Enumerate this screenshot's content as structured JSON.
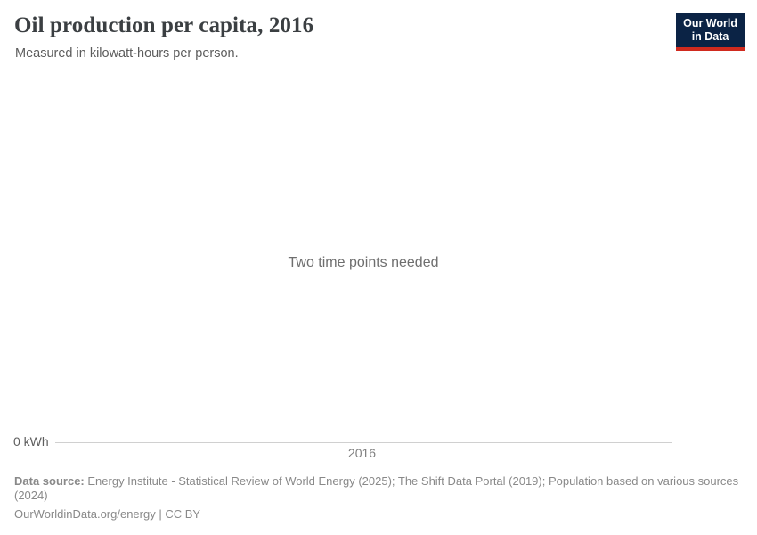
{
  "header": {
    "title": "Oil production per capita, 2016",
    "subtitle": "Measured in kilowatt-hours per person.",
    "logo": {
      "line1": "Our World",
      "line2": "in Data",
      "bg_color": "#0b2345",
      "accent_color": "#d02a1e"
    }
  },
  "chart": {
    "message": "Two time points needed",
    "y_axis_tick_label": "0 kWh",
    "x_axis_tick_label": "2016"
  },
  "chart_data": {
    "type": "line",
    "title": "Oil production per capita, 2016",
    "subtitle": "Measured in kilowatt-hours per person.",
    "unit": "kilowatt-hours per person",
    "x_ticks": [
      "2016"
    ],
    "y_ticks": [
      "0 kWh"
    ],
    "series": [],
    "annotations": [
      "Two time points needed"
    ],
    "grid": false,
    "legend_position": "none",
    "note": "Empty plot area; chart shows message because two time points are required to draw the line."
  },
  "footer": {
    "data_source_label": "Data source:",
    "data_source_line1": "Energy Institute - Statistical Review of World Energy (2025); The Shift Data Portal (2019); Population based on various sources",
    "data_source_line2": "(2024)",
    "credit": "OurWorldinData.org/energy | CC BY"
  },
  "colors": {
    "title_text": "#3b3f42",
    "subtitle_text": "#5c5c5c",
    "message_text": "#6e6e6e",
    "axis_line": "#d0d0d0",
    "axis_label": "#5e5e5e",
    "footer_text": "#898989"
  }
}
